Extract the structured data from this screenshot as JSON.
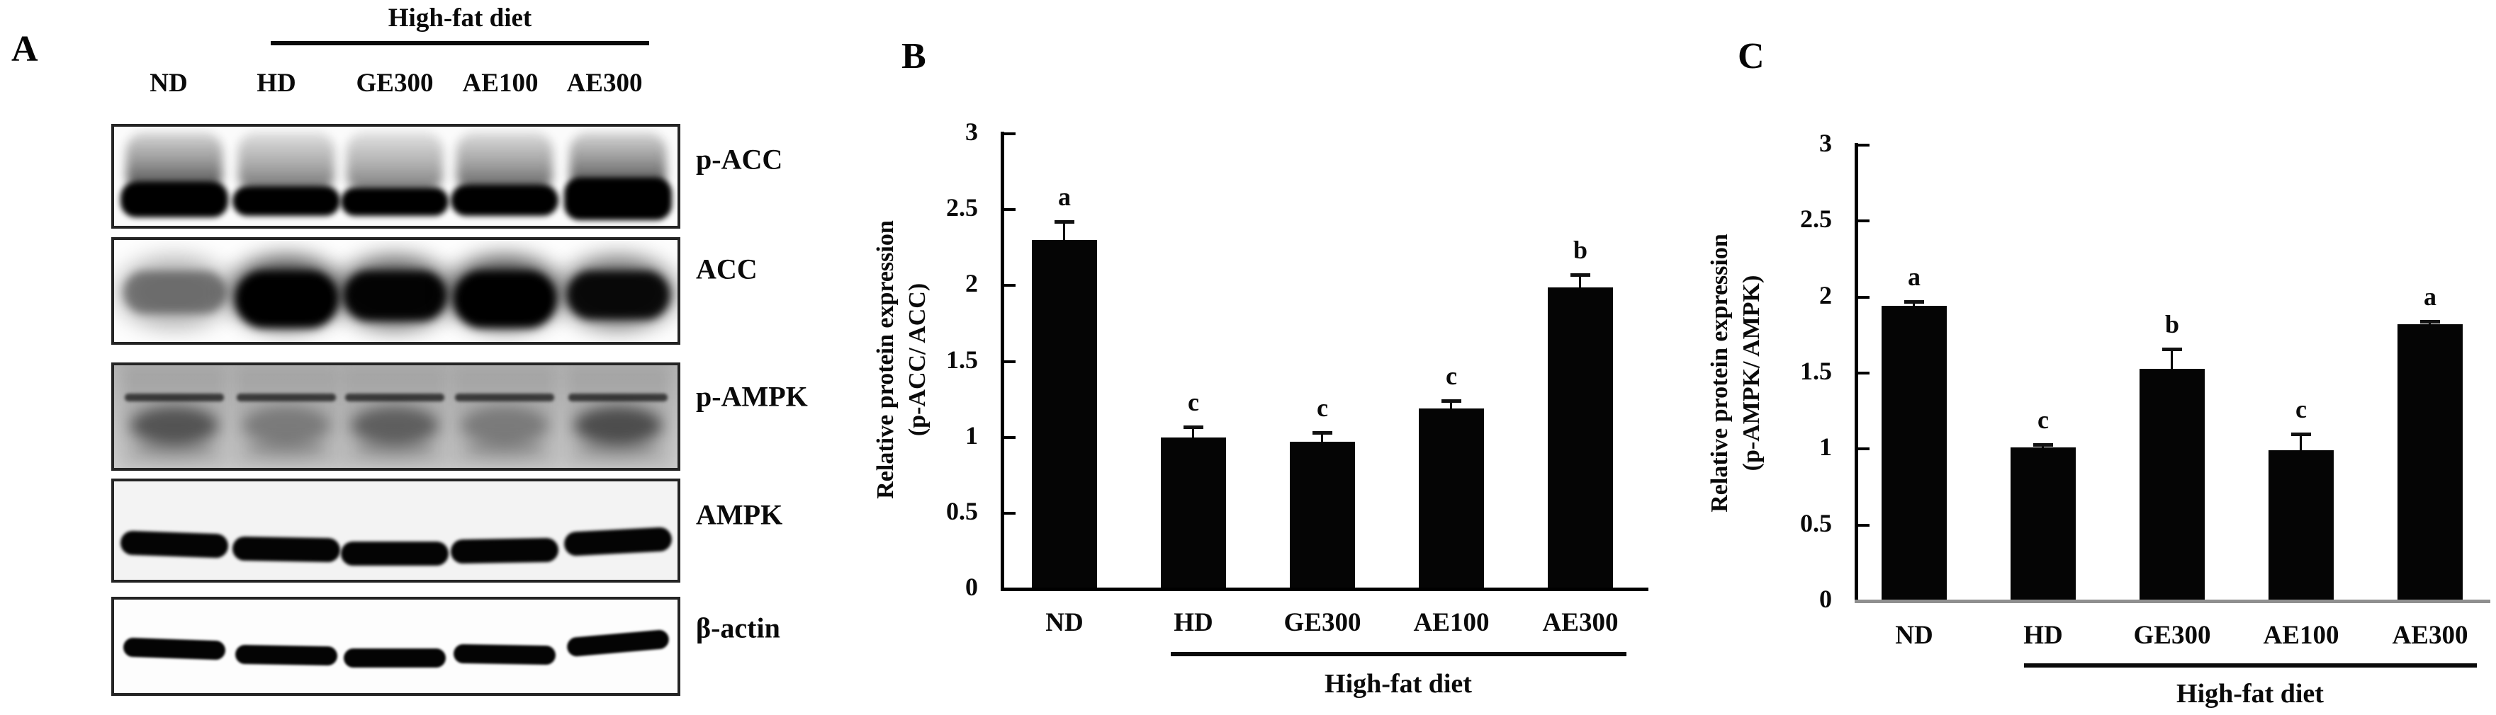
{
  "figure_title": "",
  "panel_a": {
    "label": "A",
    "group_header": "High-fat diet",
    "lane_labels": [
      "ND",
      "HD",
      "GE300",
      "AE100",
      "AE300"
    ],
    "blot_rows": [
      {
        "label": "p-ACC"
      },
      {
        "label": "ACC"
      },
      {
        "label": "p-AMPK"
      },
      {
        "label": "AMPK"
      },
      {
        "label": "β-actin"
      }
    ]
  },
  "chart_data": [
    {
      "type": "bar",
      "panel_label": "B",
      "categories": [
        "ND",
        "HD",
        "GE300",
        "AE100",
        "AE300"
      ],
      "values": [
        2.3,
        1.0,
        0.97,
        1.19,
        1.99
      ],
      "errors": [
        0.12,
        0.07,
        0.06,
        0.05,
        0.08
      ],
      "sig_letters": [
        "a",
        "c",
        "c",
        "c",
        "b"
      ],
      "ylabel_lines": [
        "Relative protein expression",
        "(p-ACC/ ACC)"
      ],
      "yticks": [
        "0",
        "0.5",
        "1",
        "1.5",
        "2",
        "2.5",
        "3"
      ],
      "ylim": [
        0,
        3
      ],
      "grid": false,
      "legend": "none",
      "bar_color": "#050505",
      "group_bracket_label": "High-fat diet",
      "group_bracket_categories": [
        "HD",
        "GE300",
        "AE100",
        "AE300"
      ]
    },
    {
      "type": "bar",
      "panel_label": "C",
      "categories": [
        "ND",
        "HD",
        "GE300",
        "AE100",
        "AE300"
      ],
      "values": [
        1.94,
        1.01,
        1.53,
        0.99,
        1.82
      ],
      "errors": [
        0.03,
        0.02,
        0.13,
        0.11,
        0.02
      ],
      "sig_letters": [
        "a",
        "c",
        "b",
        "c",
        "a"
      ],
      "ylabel_lines": [
        "Relative protein expression",
        "(p-AMPK/ AMPK)"
      ],
      "yticks": [
        "0",
        "0.5",
        "1",
        "1.5",
        "2",
        "2.5",
        "3"
      ],
      "ylim": [
        0,
        3
      ],
      "grid": false,
      "legend": "none",
      "bar_color": "#050505",
      "group_bracket_label": "High-fat diet",
      "group_bracket_categories": [
        "HD",
        "GE300",
        "AE100",
        "AE300"
      ]
    }
  ]
}
